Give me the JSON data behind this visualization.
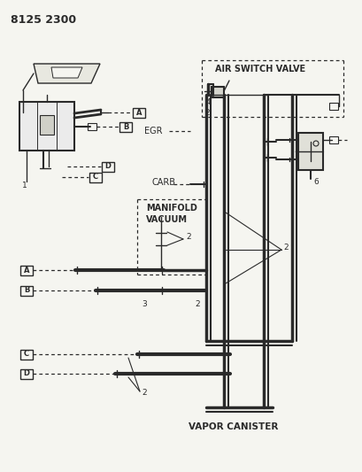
{
  "title": "8125 2300",
  "bg_color": "#f5f5f0",
  "line_color": "#2a2a2a",
  "labels": {
    "air_switch_valve": "AIR SWITCH VALVE",
    "egr": "EGR",
    "carb": "CARB",
    "manifold_vacuum_1": "MANIFOLD",
    "manifold_vacuum_2": "VACUUM",
    "vapor_canister": "VAPOR CANISTER",
    "title": "8125 2300"
  }
}
